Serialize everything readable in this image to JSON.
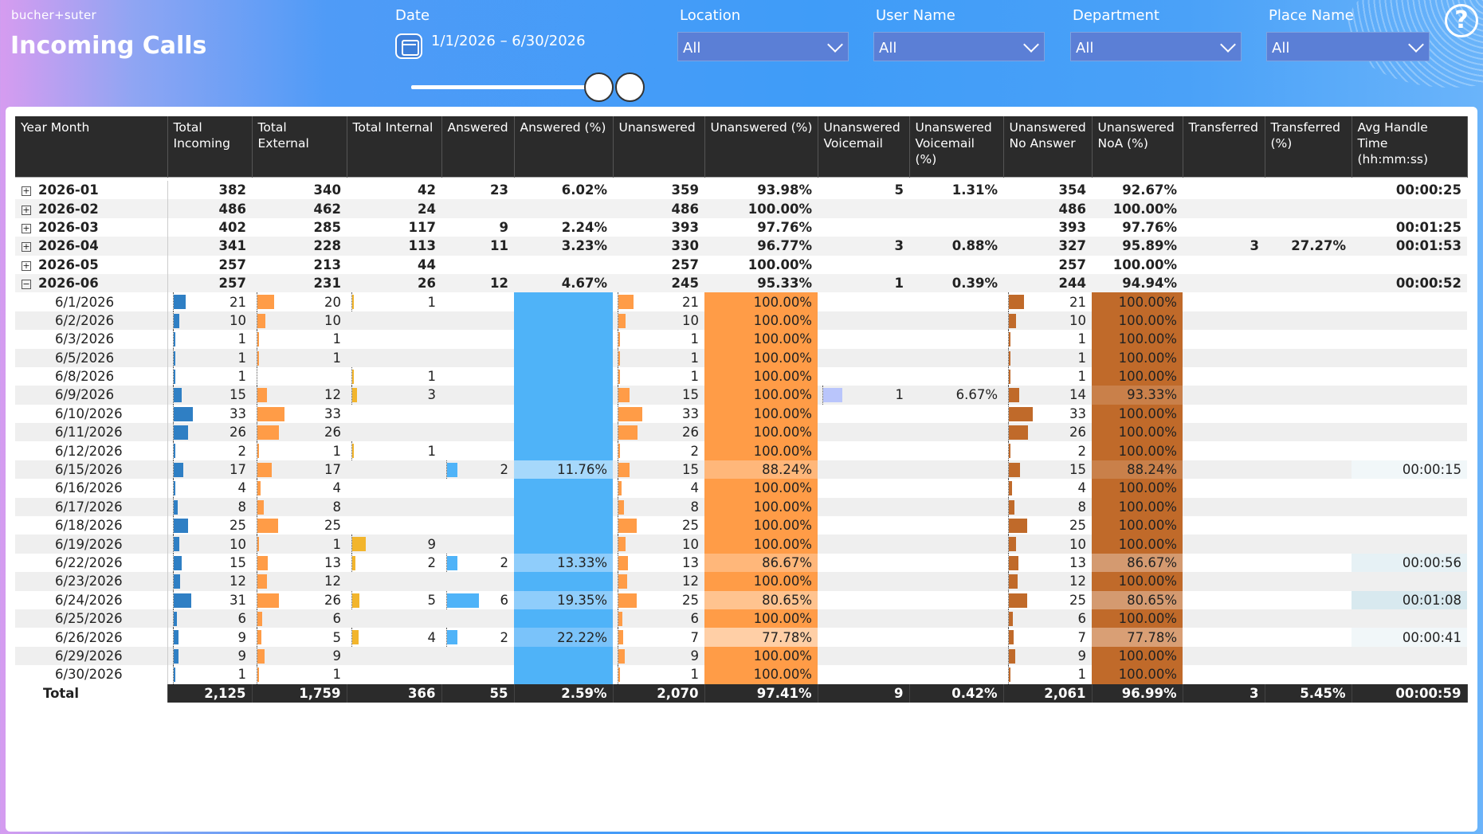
{
  "brand": "bucher+suter",
  "title": "Incoming Calls",
  "filters": {
    "date_label": "Date",
    "date_value": "1/1/2026 – 6/30/2026",
    "date_range_fraction": [
      0.82,
      1.0
    ],
    "location_label": "Location",
    "location_value": "All",
    "username_label": "User Name",
    "username_value": "All",
    "department_label": "Department",
    "department_value": "All",
    "place_label": "Place Name",
    "place_value": "All"
  },
  "help_glyph": "?",
  "colors": {
    "incoming": "#2f7fc4",
    "external": "#ff9c47",
    "internal": "#f2b52d",
    "answered": "#4fb3f8",
    "voicemail": "#b9c5fb",
    "noanswer": "#c06a2a",
    "header": "#2b2b2b"
  },
  "columns": [
    "Year Month",
    "Total Incoming",
    "Total External",
    "Total Internal",
    "Answered",
    "Answered (%)",
    "Unanswered",
    "Unanswered (%)",
    "Unanswered Voicemail",
    "Unanswered Voicemail (%)",
    "Unanswered No Answer",
    "Unanswered NoA (%)",
    "Transferred",
    "Transferred (%)",
    "Avg Handle Time (hh:mm:ss)"
  ],
  "months": [
    [
      "2026-01",
      "382",
      "340",
      "42",
      "23",
      "6.02%",
      "359",
      "93.98%",
      "5",
      "1.31%",
      "354",
      "92.67%",
      "",
      "",
      "00:00:25"
    ],
    [
      "2026-02",
      "486",
      "462",
      "24",
      "",
      "",
      "486",
      "100.00%",
      "",
      "",
      "486",
      "100.00%",
      "",
      "",
      ""
    ],
    [
      "2026-03",
      "402",
      "285",
      "117",
      "9",
      "2.24%",
      "393",
      "97.76%",
      "",
      "",
      "393",
      "97.76%",
      "",
      "",
      "00:01:25"
    ],
    [
      "2026-04",
      "341",
      "228",
      "113",
      "11",
      "3.23%",
      "330",
      "96.77%",
      "3",
      "0.88%",
      "327",
      "95.89%",
      "3",
      "27.27%",
      "00:01:53"
    ],
    [
      "2026-05",
      "257",
      "213",
      "44",
      "",
      "",
      "257",
      "100.00%",
      "",
      "",
      "257",
      "100.00%",
      "",
      "",
      ""
    ],
    [
      "2026-06",
      "257",
      "231",
      "26",
      "12",
      "4.67%",
      "245",
      "95.33%",
      "1",
      "0.39%",
      "244",
      "94.94%",
      "",
      "",
      "00:00:52"
    ]
  ],
  "days": [
    [
      "6/1/2026",
      "21",
      "20",
      "1",
      "",
      "",
      "21",
      "100.00%",
      "",
      "",
      "21",
      "100.00%",
      "",
      "",
      ""
    ],
    [
      "6/2/2026",
      "10",
      "10",
      "",
      "",
      "",
      "10",
      "100.00%",
      "",
      "",
      "10",
      "100.00%",
      "",
      "",
      ""
    ],
    [
      "6/3/2026",
      "1",
      "1",
      "",
      "",
      "",
      "1",
      "100.00%",
      "",
      "",
      "1",
      "100.00%",
      "",
      "",
      ""
    ],
    [
      "6/5/2026",
      "1",
      "1",
      "",
      "",
      "",
      "1",
      "100.00%",
      "",
      "",
      "1",
      "100.00%",
      "",
      "",
      ""
    ],
    [
      "6/8/2026",
      "1",
      "",
      "1",
      "",
      "",
      "1",
      "100.00%",
      "",
      "",
      "1",
      "100.00%",
      "",
      "",
      ""
    ],
    [
      "6/9/2026",
      "15",
      "12",
      "3",
      "",
      "",
      "15",
      "100.00%",
      "1",
      "6.67%",
      "14",
      "93.33%",
      "",
      "",
      ""
    ],
    [
      "6/10/2026",
      "33",
      "33",
      "",
      "",
      "",
      "33",
      "100.00%",
      "",
      "",
      "33",
      "100.00%",
      "",
      "",
      ""
    ],
    [
      "6/11/2026",
      "26",
      "26",
      "",
      "",
      "",
      "26",
      "100.00%",
      "",
      "",
      "26",
      "100.00%",
      "",
      "",
      ""
    ],
    [
      "6/12/2026",
      "2",
      "1",
      "1",
      "",
      "",
      "2",
      "100.00%",
      "",
      "",
      "2",
      "100.00%",
      "",
      "",
      ""
    ],
    [
      "6/15/2026",
      "17",
      "17",
      "",
      "2",
      "11.76%",
      "15",
      "88.24%",
      "",
      "",
      "15",
      "88.24%",
      "",
      "",
      "00:00:15"
    ],
    [
      "6/16/2026",
      "4",
      "4",
      "",
      "",
      "",
      "4",
      "100.00%",
      "",
      "",
      "4",
      "100.00%",
      "",
      "",
      ""
    ],
    [
      "6/17/2026",
      "8",
      "8",
      "",
      "",
      "",
      "8",
      "100.00%",
      "",
      "",
      "8",
      "100.00%",
      "",
      "",
      ""
    ],
    [
      "6/18/2026",
      "25",
      "25",
      "",
      "",
      "",
      "25",
      "100.00%",
      "",
      "",
      "25",
      "100.00%",
      "",
      "",
      ""
    ],
    [
      "6/19/2026",
      "10",
      "1",
      "9",
      "",
      "",
      "10",
      "100.00%",
      "",
      "",
      "10",
      "100.00%",
      "",
      "",
      ""
    ],
    [
      "6/22/2026",
      "15",
      "13",
      "2",
      "2",
      "13.33%",
      "13",
      "86.67%",
      "",
      "",
      "13",
      "86.67%",
      "",
      "",
      "00:00:56"
    ],
    [
      "6/23/2026",
      "12",
      "12",
      "",
      "",
      "",
      "12",
      "100.00%",
      "",
      "",
      "12",
      "100.00%",
      "",
      "",
      ""
    ],
    [
      "6/24/2026",
      "31",
      "26",
      "5",
      "6",
      "19.35%",
      "25",
      "80.65%",
      "",
      "",
      "25",
      "80.65%",
      "",
      "",
      "00:01:08"
    ],
    [
      "6/25/2026",
      "6",
      "6",
      "",
      "",
      "",
      "6",
      "100.00%",
      "",
      "",
      "6",
      "100.00%",
      "",
      "",
      ""
    ],
    [
      "6/26/2026",
      "9",
      "5",
      "4",
      "2",
      "22.22%",
      "7",
      "77.78%",
      "",
      "",
      "7",
      "77.78%",
      "",
      "",
      "00:00:41"
    ],
    [
      "6/29/2026",
      "9",
      "9",
      "",
      "",
      "",
      "9",
      "100.00%",
      "",
      "",
      "9",
      "100.00%",
      "",
      "",
      ""
    ],
    [
      "6/30/2026",
      "1",
      "1",
      "",
      "",
      "",
      "1",
      "100.00%",
      "",
      "",
      "1",
      "100.00%",
      "",
      "",
      ""
    ]
  ],
  "total": [
    "Total",
    "2,125",
    "1,759",
    "366",
    "55",
    "2.59%",
    "2,070",
    "97.41%",
    "9",
    "0.42%",
    "2,061",
    "96.99%",
    "3",
    "5.45%",
    "00:00:59"
  ],
  "expanded_month": "2026-06"
}
